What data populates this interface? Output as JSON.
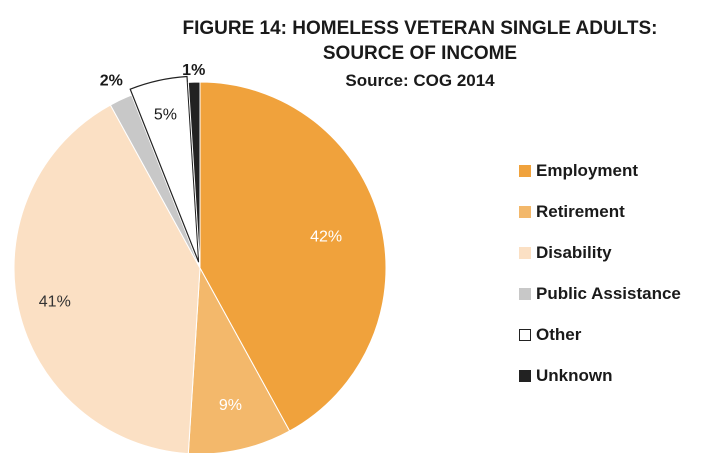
{
  "title": {
    "line1": "FIGURE 14:  HOMELESS VETERAN SINGLE ADULTS:",
    "line2": "SOURCE OF INCOME",
    "source": "Source:  COG 2014"
  },
  "chart_data": {
    "type": "pie",
    "title": "FIGURE 14:  HOMELESS VETERAN SINGLE ADULTS: SOURCE OF INCOME",
    "subtitle": "Source:  COG 2014",
    "legend_position": "right",
    "slices": [
      {
        "name": "Employment",
        "value": 42,
        "label": "42%",
        "color": "#f0a23c"
      },
      {
        "name": "Retirement",
        "value": 9,
        "label": "9%",
        "color": "#f3b86b"
      },
      {
        "name": "Disability",
        "value": 41,
        "label": "41%",
        "color": "#fbe0c4"
      },
      {
        "name": "Public Assistance",
        "value": 2,
        "label": "2%",
        "color": "#c8c8c8"
      },
      {
        "name": "Other",
        "value": 5,
        "label": "5%",
        "color": "#ffffff"
      },
      {
        "name": "Unknown",
        "value": 1,
        "label": "1%",
        "color": "#222222"
      }
    ]
  }
}
